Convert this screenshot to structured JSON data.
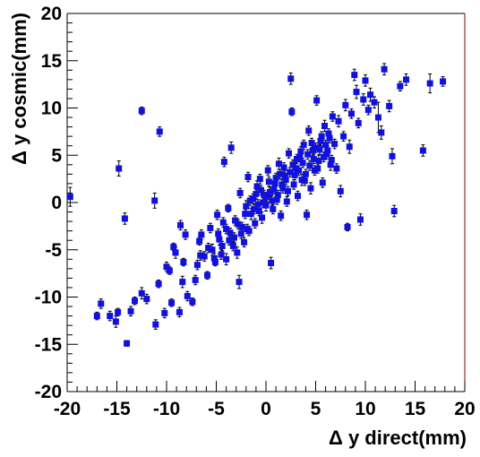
{
  "chart_data": {
    "type": "scatter",
    "xlabel": "Δ y direct(mm)",
    "ylabel": "Δ y cosmic(mm)",
    "xlim": [
      -20,
      20
    ],
    "ylim": [
      -20,
      20
    ],
    "x_ticks": [
      "-20",
      "-15",
      "-10",
      "-5",
      "0",
      "5",
      "10",
      "15",
      "20"
    ],
    "y_ticks": [
      "-20",
      "-15",
      "-10",
      "-5",
      "0",
      "5",
      "10",
      "15",
      "20"
    ],
    "grid": false,
    "legend": "none",
    "marker_color": "#1010e0",
    "errorbar_color": "#000000",
    "frame_right_color": "#8b0000",
    "points": [
      [
        -19.7,
        0.6,
        1.0
      ],
      [
        -14.8,
        3.6,
        0.8
      ],
      [
        -14.0,
        -14.9,
        0.3
      ],
      [
        -14.2,
        -1.7,
        0.6
      ],
      [
        -12.5,
        9.7,
        0.4
      ],
      [
        -10.7,
        7.5,
        0.5
      ],
      [
        -11.2,
        0.2,
        0.8
      ],
      [
        -16.6,
        -10.7,
        0.5
      ],
      [
        -17.0,
        -12.0,
        0.4
      ],
      [
        -15.7,
        -12.0,
        0.5
      ],
      [
        -15.1,
        -12.6,
        0.6
      ],
      [
        -14.9,
        -11.6,
        0.4
      ],
      [
        -13.6,
        -11.5,
        0.5
      ],
      [
        -13.2,
        -10.4,
        0.4
      ],
      [
        -12.5,
        -9.6,
        0.6
      ],
      [
        -12.0,
        -10.2,
        0.5
      ],
      [
        -11.1,
        -12.9,
        0.5
      ],
      [
        -10.8,
        -8.6,
        0.4
      ],
      [
        -10.2,
        -11.7,
        0.5
      ],
      [
        -10.0,
        -6.8,
        0.5
      ],
      [
        -9.7,
        -7.2,
        0.4
      ],
      [
        -9.5,
        -10.6,
        0.4
      ],
      [
        -9.3,
        -4.7,
        0.4
      ],
      [
        -9.1,
        -5.3,
        0.6
      ],
      [
        -8.7,
        -11.6,
        0.5
      ],
      [
        -8.6,
        -2.4,
        0.5
      ],
      [
        -8.4,
        -8.4,
        0.6
      ],
      [
        -8.3,
        -6.3,
        0.4
      ],
      [
        -8.1,
        -3.4,
        0.5
      ],
      [
        -7.9,
        -9.9,
        0.5
      ],
      [
        -7.4,
        -10.5,
        0.4
      ],
      [
        -7.1,
        -8.2,
        0.5
      ],
      [
        -6.9,
        -6.6,
        0.5
      ],
      [
        -6.7,
        -4.1,
        0.4
      ],
      [
        -6.5,
        -3.4,
        0.5
      ],
      [
        -6.2,
        -5.7,
        0.5
      ],
      [
        -5.9,
        -7.7,
        0.4
      ],
      [
        -5.6,
        -2.7,
        0.5
      ],
      [
        -5.4,
        -5.0,
        0.6
      ],
      [
        -5.1,
        -6.3,
        0.4
      ],
      [
        -4.9,
        -1.3,
        0.5
      ],
      [
        -4.7,
        -3.9,
        0.6
      ],
      [
        -4.5,
        -5.5,
        0.5
      ],
      [
        -4.3,
        -2.1,
        0.5
      ],
      [
        -4.2,
        4.3,
        0.5
      ],
      [
        -4.0,
        -6.0,
        0.6
      ],
      [
        -3.8,
        -0.6,
        0.4
      ],
      [
        -3.6,
        -3.2,
        0.5
      ],
      [
        -3.5,
        5.8,
        0.6
      ],
      [
        -3.3,
        -4.6,
        0.5
      ],
      [
        -3.1,
        -1.9,
        0.5
      ],
      [
        -2.9,
        -5.3,
        0.6
      ],
      [
        -2.7,
        -8.4,
        0.7
      ],
      [
        -2.6,
        1.0,
        0.5
      ],
      [
        -2.4,
        -2.6,
        0.5
      ],
      [
        -2.2,
        -4.2,
        0.5
      ],
      [
        -2.0,
        -0.4,
        0.6
      ],
      [
        -1.8,
        2.7,
        0.5
      ],
      [
        -1.7,
        -3.0,
        0.5
      ],
      [
        -1.5,
        -1.2,
        0.6
      ],
      [
        -1.3,
        0.4,
        0.5
      ],
      [
        -1.1,
        -2.2,
        0.5
      ],
      [
        -0.9,
        1.7,
        0.6
      ],
      [
        -0.7,
        -0.9,
        0.5
      ],
      [
        -0.6,
        2.5,
        0.5
      ],
      [
        -0.4,
        -1.6,
        0.6
      ],
      [
        -0.2,
        0.8,
        0.5
      ],
      [
        0.0,
        -0.3,
        0.6
      ],
      [
        0.2,
        3.4,
        0.5
      ],
      [
        0.4,
        1.1,
        0.5
      ],
      [
        0.5,
        -6.4,
        0.6
      ],
      [
        0.7,
        -0.7,
        0.5
      ],
      [
        0.9,
        2.0,
        0.6
      ],
      [
        1.1,
        0.3,
        0.5
      ],
      [
        1.3,
        4.1,
        0.6
      ],
      [
        1.5,
        -1.4,
        0.5
      ],
      [
        1.7,
        1.5,
        0.5
      ],
      [
        1.9,
        2.8,
        0.6
      ],
      [
        2.1,
        0.1,
        0.5
      ],
      [
        2.3,
        5.2,
        0.5
      ],
      [
        2.5,
        13.1,
        0.6
      ],
      [
        2.6,
        9.6,
        0.4
      ],
      [
        2.8,
        1.9,
        0.5
      ],
      [
        3.0,
        3.6,
        0.6
      ],
      [
        3.2,
        0.7,
        0.5
      ],
      [
        3.4,
        4.8,
        0.5
      ],
      [
        3.6,
        2.4,
        0.6
      ],
      [
        3.8,
        6.1,
        0.5
      ],
      [
        4.0,
        3.0,
        0.5
      ],
      [
        4.1,
        -1.3,
        0.5
      ],
      [
        4.3,
        7.6,
        0.5
      ],
      [
        4.5,
        1.5,
        0.6
      ],
      [
        4.7,
        5.5,
        0.5
      ],
      [
        4.9,
        3.4,
        0.5
      ],
      [
        5.1,
        10.8,
        0.5
      ],
      [
        5.3,
        4.4,
        0.6
      ],
      [
        5.5,
        6.5,
        0.5
      ],
      [
        5.7,
        2.1,
        0.5
      ],
      [
        5.9,
        8.1,
        0.6
      ],
      [
        6.1,
        5.1,
        0.5
      ],
      [
        6.3,
        7.3,
        0.5
      ],
      [
        6.5,
        4.0,
        0.6
      ],
      [
        6.7,
        9.1,
        0.5
      ],
      [
        6.9,
        6.2,
        0.5
      ],
      [
        7.1,
        3.6,
        0.5
      ],
      [
        7.3,
        8.6,
        0.6
      ],
      [
        7.5,
        1.2,
        0.6
      ],
      [
        7.8,
        7.0,
        0.5
      ],
      [
        8.0,
        10.3,
        0.6
      ],
      [
        8.2,
        -2.6,
        0.4
      ],
      [
        8.4,
        5.9,
        0.7
      ],
      [
        8.6,
        9.4,
        0.5
      ],
      [
        8.9,
        13.5,
        0.6
      ],
      [
        9.1,
        11.7,
        0.7
      ],
      [
        9.3,
        8.4,
        0.5
      ],
      [
        9.5,
        -1.8,
        0.6
      ],
      [
        9.8,
        10.9,
        0.6
      ],
      [
        10.0,
        12.9,
        0.6
      ],
      [
        10.3,
        9.8,
        0.5
      ],
      [
        10.5,
        11.4,
        0.7
      ],
      [
        10.9,
        10.6,
        0.6
      ],
      [
        11.3,
        9.0,
        1.6
      ],
      [
        11.6,
        7.4,
        0.7
      ],
      [
        11.9,
        14.1,
        0.6
      ],
      [
        12.4,
        10.2,
        0.6
      ],
      [
        12.7,
        4.9,
        0.8
      ],
      [
        12.9,
        -0.9,
        0.6
      ],
      [
        13.5,
        12.3,
        0.5
      ],
      [
        14.1,
        13.0,
        0.6
      ],
      [
        15.8,
        5.5,
        0.6
      ],
      [
        16.5,
        12.6,
        1.0
      ],
      [
        17.8,
        12.8,
        0.5
      ]
    ],
    "cluster_points": [
      [
        -6.6,
        -5.6
      ],
      [
        -5.8,
        -4.8
      ],
      [
        -5.2,
        -5.9
      ],
      [
        -4.8,
        -3.3
      ],
      [
        -4.4,
        -4.6
      ],
      [
        -4.0,
        -2.8
      ],
      [
        -3.7,
        -4.0
      ],
      [
        -3.2,
        -3.7
      ],
      [
        -2.8,
        -2.3
      ],
      [
        -2.5,
        -3.3
      ],
      [
        -2.1,
        -1.2
      ],
      [
        -1.9,
        -2.8
      ],
      [
        -1.6,
        0.2
      ],
      [
        -1.2,
        -0.7
      ],
      [
        -1.0,
        0.9
      ],
      [
        -0.8,
        -0.2
      ],
      [
        -0.5,
        1.3
      ],
      [
        -0.3,
        0.0
      ],
      [
        0.1,
        0.6
      ],
      [
        0.3,
        2.2
      ],
      [
        0.6,
        0.2
      ],
      [
        0.8,
        1.4
      ],
      [
        1.0,
        2.6
      ],
      [
        1.2,
        0.8
      ],
      [
        1.4,
        3.0
      ],
      [
        1.6,
        1.9
      ],
      [
        1.8,
        3.7
      ],
      [
        2.0,
        2.4
      ],
      [
        2.2,
        1.2
      ],
      [
        2.4,
        3.2
      ],
      [
        2.7,
        4.0
      ],
      [
        2.9,
        2.9
      ],
      [
        3.1,
        4.6
      ],
      [
        3.3,
        3.4
      ],
      [
        3.5,
        5.4
      ],
      [
        3.7,
        4.2
      ],
      [
        3.9,
        2.3
      ],
      [
        4.2,
        5.1
      ],
      [
        4.4,
        3.9
      ],
      [
        4.6,
        6.3
      ],
      [
        4.8,
        4.6
      ],
      [
        5.0,
        5.8
      ],
      [
        5.2,
        3.6
      ],
      [
        5.4,
        5.6
      ],
      [
        5.6,
        7.0
      ],
      [
        5.8,
        4.8
      ],
      [
        6.0,
        6.1
      ],
      [
        6.2,
        5.5
      ],
      [
        6.4,
        6.8
      ],
      [
        6.6,
        4.5
      ]
    ]
  }
}
